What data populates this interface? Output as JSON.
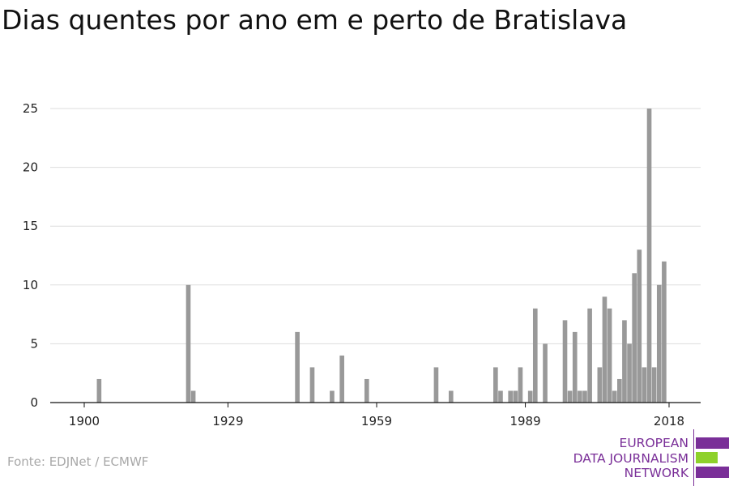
{
  "title": "Dias quentes por ano em e perto de Bratislava",
  "source": "Fonte: EDJNet / ECMWF",
  "logo": {
    "lines": [
      "EUROPEAN",
      "DATA JOURNALISM",
      "NETWORK"
    ],
    "colors": {
      "purple": "#7a2f98",
      "green": "#8ed12b"
    }
  },
  "colors": {
    "bar": "#999999",
    "grid": "#dddddd",
    "axis": "#111111"
  },
  "chart_data": {
    "type": "bar",
    "title": "Dias quentes por ano em e perto de Bratislava",
    "xlabel": "",
    "ylabel": "",
    "x_ticks": [
      1900,
      1929,
      1959,
      1989,
      2018
    ],
    "y_ticks": [
      0,
      5,
      10,
      15,
      20,
      25
    ],
    "xlim": [
      1897,
      2022
    ],
    "ylim": [
      0,
      25
    ],
    "grid": true,
    "values_by_year": [
      {
        "year": 1903,
        "value": 2
      },
      {
        "year": 1921,
        "value": 10
      },
      {
        "year": 1922,
        "value": 1
      },
      {
        "year": 1943,
        "value": 6
      },
      {
        "year": 1946,
        "value": 3
      },
      {
        "year": 1950,
        "value": 1
      },
      {
        "year": 1952,
        "value": 4
      },
      {
        "year": 1957,
        "value": 2
      },
      {
        "year": 1971,
        "value": 3
      },
      {
        "year": 1974,
        "value": 1
      },
      {
        "year": 1983,
        "value": 3
      },
      {
        "year": 1984,
        "value": 1
      },
      {
        "year": 1986,
        "value": 1
      },
      {
        "year": 1987,
        "value": 1
      },
      {
        "year": 1988,
        "value": 3
      },
      {
        "year": 1990,
        "value": 1
      },
      {
        "year": 1991,
        "value": 8
      },
      {
        "year": 1993,
        "value": 5
      },
      {
        "year": 1997,
        "value": 7
      },
      {
        "year": 1998,
        "value": 1
      },
      {
        "year": 1999,
        "value": 6
      },
      {
        "year": 2000,
        "value": 1
      },
      {
        "year": 2001,
        "value": 1
      },
      {
        "year": 2002,
        "value": 8
      },
      {
        "year": 2004,
        "value": 3
      },
      {
        "year": 2005,
        "value": 9
      },
      {
        "year": 2006,
        "value": 8
      },
      {
        "year": 2007,
        "value": 1
      },
      {
        "year": 2008,
        "value": 2
      },
      {
        "year": 2009,
        "value": 7
      },
      {
        "year": 2010,
        "value": 5
      },
      {
        "year": 2011,
        "value": 11
      },
      {
        "year": 2012,
        "value": 13
      },
      {
        "year": 2013,
        "value": 3
      },
      {
        "year": 2014,
        "value": 25
      },
      {
        "year": 2015,
        "value": 3
      },
      {
        "year": 2016,
        "value": 10
      },
      {
        "year": 2017,
        "value": 12
      }
    ]
  }
}
